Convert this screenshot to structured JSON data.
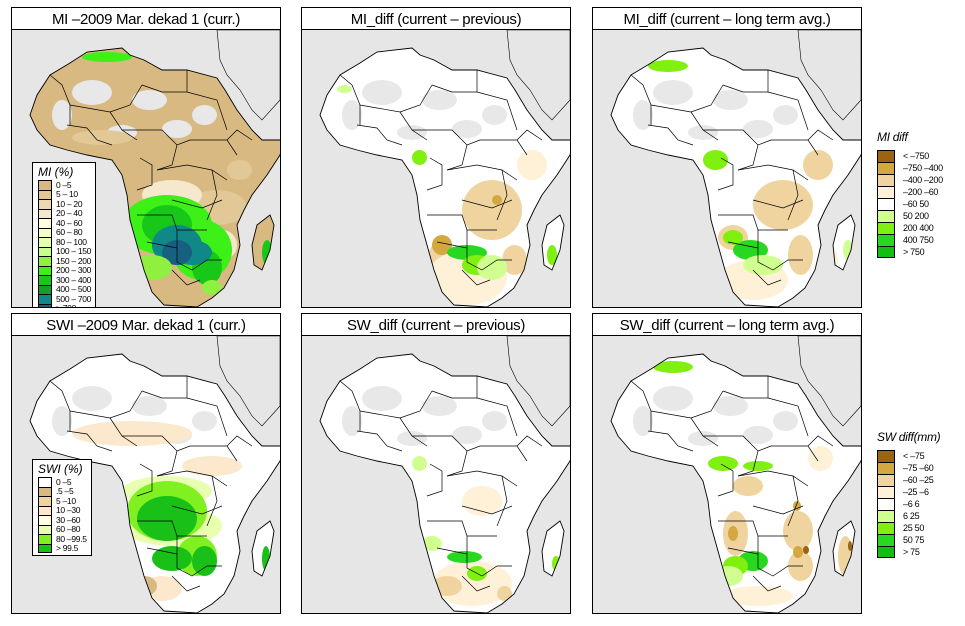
{
  "panels": [
    {
      "id": "mi-current",
      "title": "MI –2009 Mar. dekad 1 (curr.)",
      "variant": "mi_abs"
    },
    {
      "id": "mi-diff-previous",
      "title": "MI_diff (current – previous)",
      "variant": "mi_prev"
    },
    {
      "id": "mi-diff-longterm",
      "title": "MI_diff (current – long term avg.)",
      "variant": "mi_lt"
    },
    {
      "id": "swi-current",
      "title": "SWI –2009 Mar. dekad 1 (curr.)",
      "variant": "swi_abs"
    },
    {
      "id": "sw-diff-previous",
      "title": "SW_diff (current – previous)",
      "variant": "sw_prev"
    },
    {
      "id": "sw-diff-longterm",
      "title": "SW_diff (current – long term avg.)",
      "variant": "sw_lt"
    }
  ],
  "legends": {
    "mi_pct": {
      "title": "MI (%)",
      "items": [
        {
          "label": "0 –5",
          "color": "#d8b982"
        },
        {
          "label": "5 – 10",
          "color": "#e2c896"
        },
        {
          "label": "10 – 20",
          "color": "#ecd8b2"
        },
        {
          "label": "20 – 40",
          "color": "#f6e8cc"
        },
        {
          "label": "40 – 60",
          "color": "#ffffe0"
        },
        {
          "label": "60 – 80",
          "color": "#f4ffc4"
        },
        {
          "label": "80 – 100",
          "color": "#e4ffb0"
        },
        {
          "label": "100 – 150",
          "color": "#c8ff88"
        },
        {
          "label": "150 – 200",
          "color": "#90f040"
        },
        {
          "label": "200 – 300",
          "color": "#3cf018"
        },
        {
          "label": "300 – 400",
          "color": "#18c818"
        },
        {
          "label": "400 – 500",
          "color": "#10a030"
        },
        {
          "label": "500 – 700",
          "color": "#108888"
        },
        {
          "label": "> 700",
          "color": "#186080"
        }
      ]
    },
    "swi_pct": {
      "title": "SWI (%)",
      "items": [
        {
          "label": "0 –5",
          "color": "#ffffff"
        },
        {
          "label": ".5 –5",
          "color": "#d8b982"
        },
        {
          "label": "5 –10",
          "color": "#f0d4a0"
        },
        {
          "label": "10 –30",
          "color": "#fce8cc"
        },
        {
          "label": "30 –60",
          "color": "#ffffe4"
        },
        {
          "label": "60 –80",
          "color": "#e8ffb0"
        },
        {
          "label": "80 –99.5",
          "color": "#80f020"
        },
        {
          "label": "> 99.5",
          "color": "#18c018"
        }
      ]
    },
    "mi_diff": {
      "title": "MI diff",
      "items": [
        {
          "label": "< –750",
          "color": "#9c6410"
        },
        {
          "label": "–750 –400",
          "color": "#d4a840"
        },
        {
          "label": "–400 –200",
          "color": "#f0d4a0"
        },
        {
          "label": "–200  –60",
          "color": "#fff0d8"
        },
        {
          "label": "–60  50",
          "color": "#ffffff"
        },
        {
          "label": "50  200",
          "color": "#d0ff90"
        },
        {
          "label": "200  400",
          "color": "#80f010"
        },
        {
          "label": "400  750",
          "color": "#28d820"
        },
        {
          "label": "> 750",
          "color": "#10c010"
        }
      ]
    },
    "sw_diff": {
      "title": "SW diff(mm)",
      "items": [
        {
          "label": "< –75",
          "color": "#9c6410"
        },
        {
          "label": "–75 –60",
          "color": "#d4a840"
        },
        {
          "label": "–60 –25",
          "color": "#f0d4a0"
        },
        {
          "label": "–25  –6",
          "color": "#fff0d8"
        },
        {
          "label": "–6  6",
          "color": "#ffffff"
        },
        {
          "label": "6  25",
          "color": "#d0ff90"
        },
        {
          "label": "25  50",
          "color": "#80f010"
        },
        {
          "label": "50  75",
          "color": "#28d820"
        },
        {
          "label": "> 75",
          "color": "#10c010"
        }
      ]
    }
  },
  "colors": {
    "ocean": "#e6e6e6",
    "land_nodata": "#e8e8e8",
    "border": "#000000"
  }
}
